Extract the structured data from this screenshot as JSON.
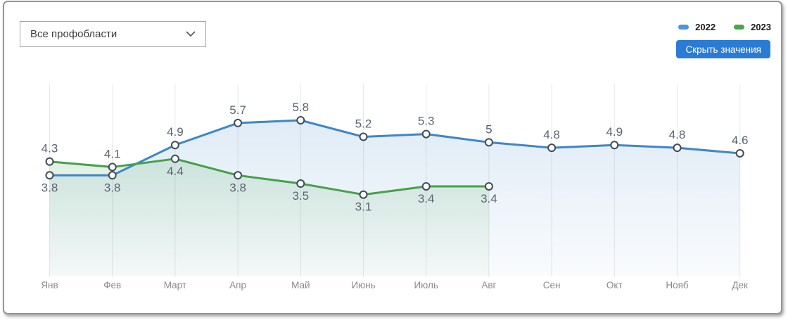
{
  "dropdown": {
    "value": "Все профобласти"
  },
  "legend": {
    "items": [
      {
        "label": "2022",
        "color": "#4f94d8"
      },
      {
        "label": "2023",
        "color": "#4aa54d"
      }
    ]
  },
  "button": {
    "label": "Скрыть значения"
  },
  "chart_data": {
    "type": "line",
    "title": "",
    "categories": [
      "Янв",
      "Фев",
      "Март",
      "Апр",
      "Май",
      "Июнь",
      "Июль",
      "Авг",
      "Сен",
      "Окт",
      "Нояб",
      "Дек"
    ],
    "series": [
      {
        "name": "2022",
        "color": "#3e86c8",
        "values": [
          3.8,
          3.8,
          4.9,
          5.7,
          5.8,
          5.2,
          5.3,
          5,
          4.8,
          4.9,
          4.8,
          4.6
        ]
      },
      {
        "name": "2023",
        "color": "#46a049",
        "values": [
          4.3,
          4.1,
          4.4,
          3.8,
          3.5,
          3.1,
          3.4,
          3.4,
          null,
          null,
          null,
          null
        ]
      }
    ],
    "ylim": [
      2.6,
      6.6
    ],
    "grid": "vertical-only",
    "markers": "white-filled-circles",
    "value_labels": true,
    "area_fill": true,
    "legend_position": "top-right"
  }
}
